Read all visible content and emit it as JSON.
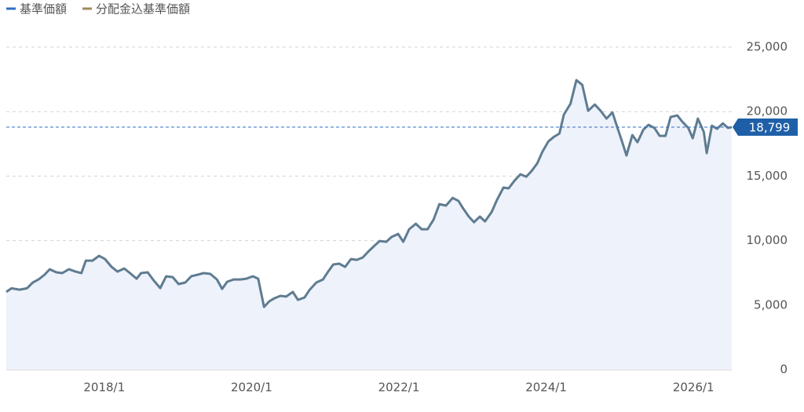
{
  "chart_data": {
    "type": "line",
    "legend": [
      {
        "name": "基準価額",
        "color": "#2f6fc4"
      },
      {
        "name": "分配金込基準価額",
        "color": "#a08a5c"
      }
    ],
    "x": [
      2016.67,
      2016.74,
      2016.85,
      2016.95,
      2017.03,
      2017.11,
      2017.19,
      2017.26,
      2017.35,
      2017.43,
      2017.52,
      2017.61,
      2017.69,
      2017.75,
      2017.84,
      2017.93,
      2018.01,
      2018.1,
      2018.18,
      2018.27,
      2018.35,
      2018.44,
      2018.5,
      2018.59,
      2018.67,
      2018.76,
      2018.84,
      2018.93,
      2019.01,
      2019.1,
      2019.18,
      2019.27,
      2019.35,
      2019.44,
      2019.53,
      2019.6,
      2019.67,
      2019.76,
      2019.85,
      2019.93,
      2020.02,
      2020.09,
      2020.17,
      2020.24,
      2020.31,
      2020.39,
      2020.47,
      2020.56,
      2020.63,
      2020.72,
      2020.79,
      2020.88,
      2020.97,
      2021.04,
      2021.11,
      2021.19,
      2021.27,
      2021.35,
      2021.43,
      2021.51,
      2021.59,
      2021.67,
      2021.74,
      2021.83,
      2021.9,
      2021.99,
      2022.06,
      2022.14,
      2022.23,
      2022.31,
      2022.39,
      2022.47,
      2022.55,
      2022.64,
      2022.73,
      2022.81,
      2022.87,
      2022.95,
      2023.02,
      2023.1,
      2023.17,
      2023.26,
      2023.33,
      2023.42,
      2023.49,
      2023.57,
      2023.65,
      2023.73,
      2023.8,
      2023.88,
      2023.95,
      2024.03,
      2024.11,
      2024.18,
      2024.24,
      2024.33,
      2024.41,
      2024.49,
      2024.57,
      2024.66,
      2024.74,
      2024.82,
      2024.9,
      2024.98,
      2025.03,
      2025.09,
      2025.17,
      2025.24,
      2025.32,
      2025.39,
      2025.47,
      2025.54,
      2025.62,
      2025.69,
      2025.78,
      2025.85,
      2025.93,
      2025.99,
      2026.06,
      2026.14,
      2026.18,
      2026.25,
      2026.32,
      2026.4,
      2026.47,
      2026.52
    ],
    "series": [
      {
        "name": "基準価額",
        "color": "#5f7c91",
        "values": [
          6020,
          6300,
          6200,
          6300,
          6750,
          7000,
          7360,
          7780,
          7540,
          7480,
          7780,
          7600,
          7480,
          8450,
          8450,
          8820,
          8570,
          7960,
          7600,
          7840,
          7480,
          7050,
          7480,
          7540,
          6930,
          6320,
          7230,
          7170,
          6630,
          6750,
          7230,
          7360,
          7480,
          7420,
          6990,
          6260,
          6810,
          6990,
          6990,
          7050,
          7230,
          7050,
          4860,
          5290,
          5530,
          5720,
          5660,
          6020,
          5410,
          5590,
          6200,
          6750,
          6990,
          7600,
          8150,
          8210,
          7960,
          8570,
          8510,
          8690,
          9180,
          9610,
          9970,
          9910,
          10280,
          10520,
          9910,
          10880,
          11310,
          10880,
          10880,
          11610,
          12830,
          12710,
          13310,
          13070,
          12520,
          11860,
          11430,
          11860,
          11490,
          12220,
          13130,
          14110,
          14050,
          14650,
          15140,
          14960,
          15380,
          15990,
          16900,
          17690,
          18060,
          18300,
          19760,
          20610,
          22440,
          22070,
          20060,
          20550,
          20060,
          19460,
          19940,
          18540,
          17690,
          16600,
          18180,
          17630,
          18600,
          18970,
          18730,
          18120,
          18120,
          19580,
          19700,
          19210,
          18730,
          17940,
          19460,
          18420,
          16780,
          18910,
          18670,
          19090,
          18730,
          18799
        ]
      }
    ],
    "current": {
      "value": 18799,
      "label": "18,799"
    },
    "xlim": [
      2016.67,
      2026.52
    ],
    "xticks": [
      {
        "value": 2018,
        "label": "2018/1"
      },
      {
        "value": 2020,
        "label": "2020/1"
      },
      {
        "value": 2022,
        "label": "2022/1"
      },
      {
        "value": 2024,
        "label": "2024/1"
      },
      {
        "value": 2026,
        "label": "2026/1"
      }
    ],
    "ylim": [
      0,
      25000
    ],
    "yticks": [
      0,
      {
        "value": 5000,
        "label": "5,000"
      },
      {
        "value": 10000,
        "label": "10,000"
      },
      {
        "value": 15000,
        "label": "15,000"
      },
      {
        "value": 20000,
        "label": "20,000"
      },
      {
        "value": 25000,
        "label": "25,000"
      }
    ],
    "grid": true
  }
}
